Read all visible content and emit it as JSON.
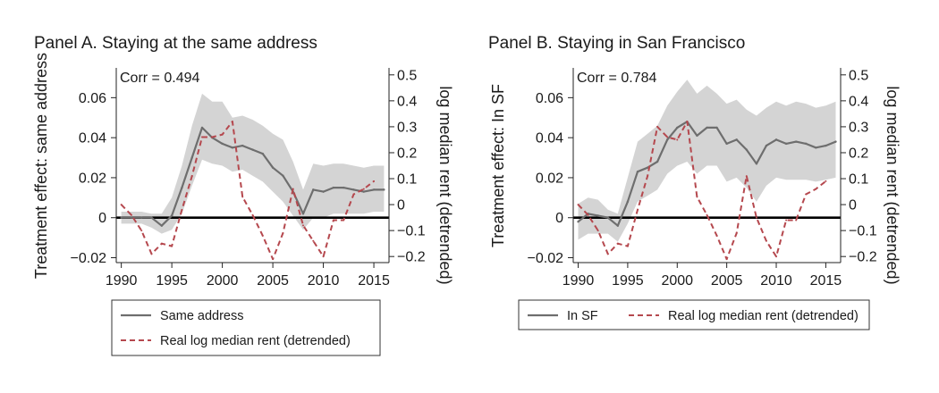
{
  "colors": {
    "band": "#d4d4d4",
    "treatment_line": "#6e6e6e",
    "rent_line": "#b5484e",
    "zero_line": "#000000",
    "axis": "#222222"
  },
  "chart_data": [
    {
      "type": "line",
      "title": "Panel A. Staying at the same address",
      "annotation": "Corr = 0.494",
      "xlabel": "",
      "ylabel": "Treatment effect: same address",
      "y2label": "log median rent (detrended)",
      "xlim": [
        1989.5,
        2016.5
      ],
      "ylim": [
        -0.022,
        0.074
      ],
      "y2lim": [
        -0.22,
        0.52
      ],
      "xticks": [
        "1990",
        "1995",
        "2000",
        "2005",
        "2010",
        "2015"
      ],
      "yticks": [
        "0.06",
        "0.04",
        "0.02",
        "0",
        "−0.02"
      ],
      "y2ticks": [
        "0.5",
        "0.4",
        "0.3",
        "0.2",
        "0.1",
        "0",
        "−0.1",
        "−0.2"
      ],
      "legend": [
        "Same address",
        "Real log median rent (detrended)"
      ],
      "legend_position": "bottom",
      "series": [
        {
          "name": "Same address",
          "axis": "left",
          "x": [
            1990,
            1991,
            1992,
            1993,
            1994,
            1995,
            1996,
            1997,
            1998,
            1999,
            2000,
            2001,
            2002,
            2003,
            2004,
            2005,
            2006,
            2007,
            2008,
            2009,
            2010,
            2011,
            2012,
            2013,
            2014,
            2015,
            2016
          ],
          "values": [
            0.0,
            0.0,
            0.0,
            0.0,
            -0.004,
            0.001,
            0.015,
            0.03,
            0.045,
            0.04,
            0.037,
            0.035,
            0.036,
            0.034,
            0.032,
            0.025,
            0.021,
            0.013,
            0.002,
            0.014,
            0.013,
            0.015,
            0.015,
            0.014,
            0.013,
            0.014,
            0.014
          ],
          "lower": [
            -0.003,
            -0.003,
            -0.003,
            -0.005,
            -0.008,
            -0.006,
            0.002,
            0.016,
            0.029,
            0.027,
            0.026,
            0.023,
            0.024,
            0.021,
            0.018,
            0.013,
            0.008,
            0.001,
            -0.006,
            0.0,
            0.0,
            0.002,
            0.002,
            0.002,
            0.002,
            0.003,
            0.003
          ],
          "upper": [
            0.003,
            0.003,
            0.003,
            0.002,
            0.002,
            0.01,
            0.026,
            0.046,
            0.062,
            0.058,
            0.058,
            0.05,
            0.051,
            0.049,
            0.046,
            0.042,
            0.039,
            0.028,
            0.014,
            0.027,
            0.026,
            0.027,
            0.027,
            0.026,
            0.025,
            0.026,
            0.026
          ]
        },
        {
          "name": "Real log median rent (detrended)",
          "axis": "right",
          "x": [
            1990,
            1991,
            1992,
            1993,
            1994,
            1995,
            1996,
            1997,
            1998,
            1999,
            2000,
            2001,
            2002,
            2003,
            2004,
            2005,
            2006,
            2007,
            2008,
            2009,
            2010,
            2011,
            2012,
            2013,
            2014,
            2015
          ],
          "values": [
            0.0,
            -0.04,
            -0.1,
            -0.19,
            -0.15,
            -0.16,
            -0.02,
            0.11,
            0.26,
            0.26,
            0.27,
            0.32,
            0.03,
            -0.04,
            -0.12,
            -0.21,
            -0.11,
            0.06,
            -0.08,
            -0.14,
            -0.2,
            -0.06,
            -0.06,
            0.04,
            0.06,
            0.09
          ]
        }
      ]
    },
    {
      "type": "line",
      "title": "Panel B. Staying in San Francisco",
      "annotation": "Corr = 0.784",
      "xlabel": "",
      "ylabel": "Treatment effect: In SF",
      "y2label": "log median rent (detrended)",
      "xlim": [
        1989.5,
        2016.5
      ],
      "ylim": [
        -0.022,
        0.074
      ],
      "y2lim": [
        -0.22,
        0.52
      ],
      "xticks": [
        "1990",
        "1995",
        "2000",
        "2005",
        "2010",
        "2015"
      ],
      "yticks": [
        "0.06",
        "0.04",
        "0.02",
        "0",
        "−0.02"
      ],
      "y2ticks": [
        "0.5",
        "0.4",
        "0.3",
        "0.2",
        "0.1",
        "0",
        "−0.1",
        "−0.2"
      ],
      "legend": [
        "In SF",
        "Real log median rent (detrended)"
      ],
      "legend_position": "bottom",
      "series": [
        {
          "name": "In SF",
          "axis": "left",
          "x": [
            1990,
            1991,
            1992,
            1993,
            1994,
            1995,
            1996,
            1997,
            1998,
            1999,
            2000,
            2001,
            2002,
            2003,
            2004,
            2005,
            2006,
            2007,
            2008,
            2009,
            2010,
            2011,
            2012,
            2013,
            2014,
            2015,
            2016
          ],
          "values": [
            -0.002,
            0.002,
            0.001,
            0.0,
            -0.004,
            0.008,
            0.023,
            0.025,
            0.028,
            0.039,
            0.045,
            0.048,
            0.041,
            0.045,
            0.045,
            0.037,
            0.039,
            0.034,
            0.027,
            0.036,
            0.039,
            0.037,
            0.038,
            0.037,
            0.035,
            0.036,
            0.038
          ],
          "lower": [
            -0.011,
            -0.008,
            -0.008,
            -0.008,
            -0.012,
            -0.003,
            0.008,
            0.011,
            0.014,
            0.022,
            0.026,
            0.028,
            0.022,
            0.026,
            0.026,
            0.018,
            0.02,
            0.015,
            0.008,
            0.016,
            0.02,
            0.019,
            0.019,
            0.019,
            0.018,
            0.019,
            0.02
          ],
          "upper": [
            0.007,
            0.01,
            0.009,
            0.004,
            0.002,
            0.02,
            0.038,
            0.042,
            0.046,
            0.056,
            0.063,
            0.069,
            0.062,
            0.066,
            0.062,
            0.057,
            0.059,
            0.054,
            0.051,
            0.055,
            0.058,
            0.056,
            0.058,
            0.057,
            0.055,
            0.056,
            0.058
          ]
        },
        {
          "name": "Real log median rent (detrended)",
          "axis": "right",
          "x": [
            1990,
            1991,
            1992,
            1993,
            1994,
            1995,
            1996,
            1997,
            1998,
            1999,
            2000,
            2001,
            2002,
            2003,
            2004,
            2005,
            2006,
            2007,
            2008,
            2009,
            2010,
            2011,
            2012,
            2013,
            2014,
            2015
          ],
          "values": [
            0.0,
            -0.04,
            -0.1,
            -0.19,
            -0.15,
            -0.16,
            -0.02,
            0.11,
            0.3,
            0.26,
            0.25,
            0.32,
            0.03,
            -0.04,
            -0.12,
            -0.21,
            -0.11,
            0.11,
            -0.05,
            -0.14,
            -0.2,
            -0.06,
            -0.06,
            0.04,
            0.06,
            0.09
          ]
        }
      ]
    }
  ]
}
